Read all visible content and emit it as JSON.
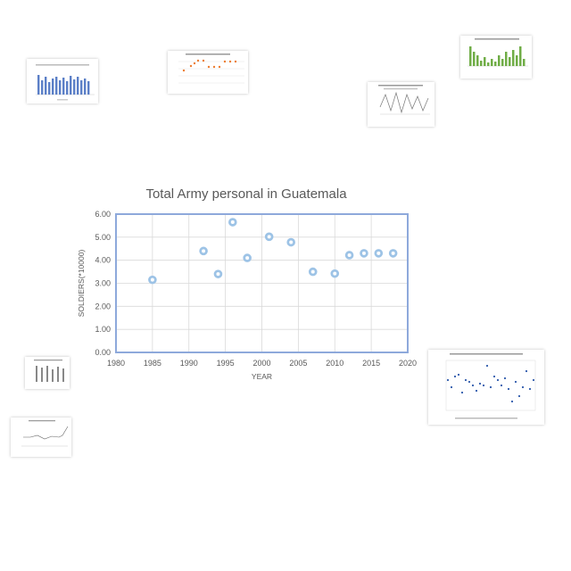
{
  "chart_data": {
    "type": "scatter",
    "title": "Total Army personal in Guatemala",
    "xlabel": "YEAR",
    "ylabel": "SOLDIERS(*10000)",
    "xlim": [
      1980,
      2020
    ],
    "ylim": [
      0,
      6
    ],
    "x_ticks": [
      "1980",
      "1985",
      "1990",
      "1995",
      "2000",
      "2005",
      "2010",
      "2015",
      "2020"
    ],
    "y_ticks": [
      "0.00",
      "1.00",
      "2.00",
      "3.00",
      "4.00",
      "5.00",
      "6.00"
    ],
    "grid": true,
    "marker_color": "#9DC3E6",
    "border_color": "#8EA9DB",
    "points": [
      {
        "x": 1985,
        "y": 3.15
      },
      {
        "x": 1992,
        "y": 4.4
      },
      {
        "x": 1994,
        "y": 3.4
      },
      {
        "x": 1996,
        "y": 5.65
      },
      {
        "x": 1998,
        "y": 4.1
      },
      {
        "x": 2001,
        "y": 5.02
      },
      {
        "x": 2004,
        "y": 4.78
      },
      {
        "x": 2007,
        "y": 3.5
      },
      {
        "x": 2010,
        "y": 3.42
      },
      {
        "x": 2012,
        "y": 4.22
      },
      {
        "x": 2014,
        "y": 4.3
      },
      {
        "x": 2016,
        "y": 4.3
      },
      {
        "x": 2018,
        "y": 4.3
      }
    ]
  }
}
